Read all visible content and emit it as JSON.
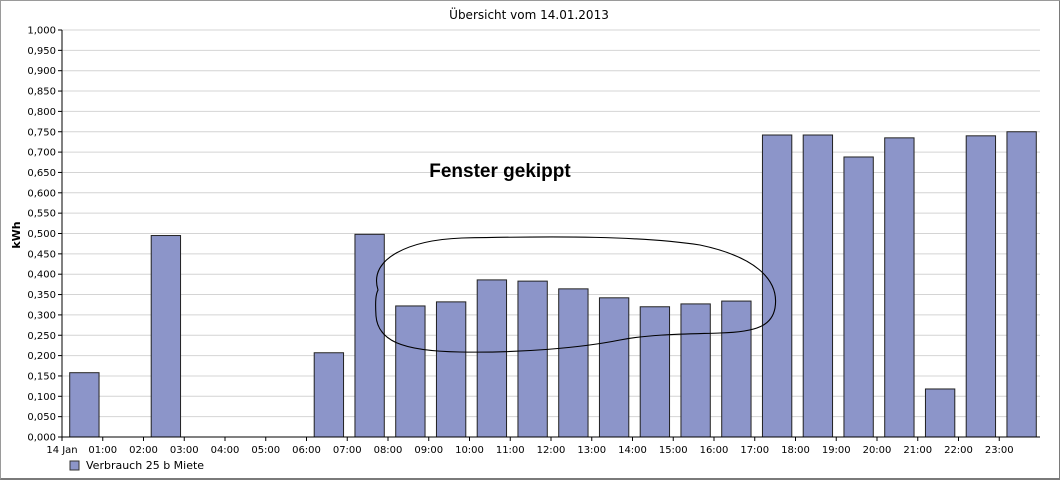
{
  "chart_data": {
    "type": "bar",
    "title": "Übersicht vom 14.01.2013",
    "ylabel": "kWh",
    "xlabel": "",
    "ylim": [
      0,
      1.0
    ],
    "ytick_step": 0.05,
    "ytick_labels": [
      "0,000",
      "0,050",
      "0,100",
      "0,150",
      "0,200",
      "0,250",
      "0,300",
      "0,350",
      "0,400",
      "0,450",
      "0,500",
      "0,550",
      "0,600",
      "0,650",
      "0,700",
      "0,750",
      "0,800",
      "0,850",
      "0,900",
      "0,950",
      "1,000"
    ],
    "grid": true,
    "categories": [
      "14 Jan",
      "01:00",
      "02:00",
      "03:00",
      "04:00",
      "05:00",
      "06:00",
      "07:00",
      "08:00",
      "09:00",
      "10:00",
      "11:00",
      "12:00",
      "13:00",
      "14:00",
      "15:00",
      "16:00",
      "17:00",
      "18:00",
      "19:00",
      "20:00",
      "21:00",
      "22:00",
      "23:00"
    ],
    "series": [
      {
        "name": "Verbrauch  25 b Miete",
        "color": "#8c95c9",
        "values": [
          0.158,
          0,
          0.495,
          0,
          0,
          0,
          0.207,
          0.498,
          0.322,
          0.332,
          0.386,
          0.383,
          0.364,
          0.342,
          0.32,
          0.327,
          0.334,
          0.742,
          0.742,
          0.688,
          0.735,
          0.118,
          0.74,
          0.75
        ]
      }
    ],
    "legend_position": "bottom-left",
    "annotations": [
      {
        "text": "Fenster gekippt"
      }
    ]
  }
}
